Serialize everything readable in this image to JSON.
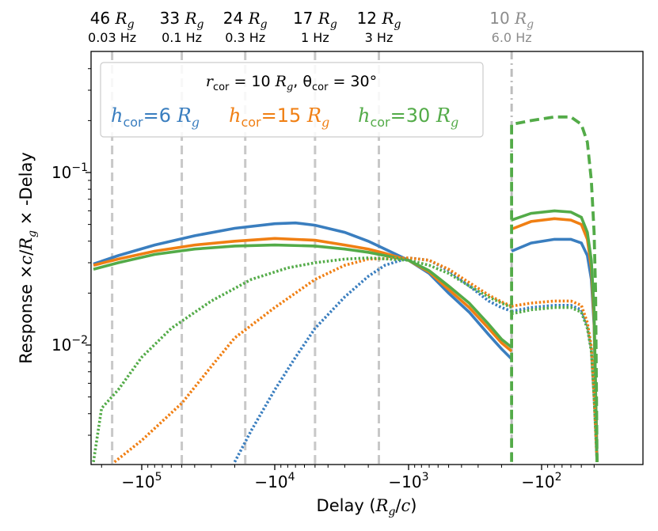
{
  "chart_data": {
    "type": "line",
    "xlabel_parts": [
      "Delay (",
      "R",
      "g",
      "/",
      "c",
      ")"
    ],
    "ylabel_parts": [
      "Response ×",
      "c",
      "/",
      "R",
      "g",
      " × -Delay"
    ],
    "x_axis": {
      "scale": "symlog-negative",
      "range_desc": "-2.3e5 to -35 (Rg/c)"
    },
    "y_axis": {
      "scale": "log",
      "range": [
        0.0021,
        0.48
      ]
    },
    "x_ticks": [
      {
        "value": -100000,
        "label_base": "−10",
        "label_exp": "5"
      },
      {
        "value": -10000,
        "label_base": "−10",
        "label_exp": "4"
      },
      {
        "value": -1000,
        "label_base": "−10",
        "label_exp": "3"
      },
      {
        "value": -100,
        "label_base": "−10",
        "label_exp": "2"
      }
    ],
    "y_ticks": [
      {
        "value": 0.1,
        "label_base": "10",
        "label_exp": "−1"
      },
      {
        "value": 0.01,
        "label_base": "10",
        "label_exp": "−2"
      }
    ],
    "frequency_markers": [
      {
        "delay": -166667,
        "radius": "46",
        "freq": "0.03 Hz",
        "color": "#000000"
      },
      {
        "delay": -50000,
        "radius": "33",
        "freq": "0.1 Hz",
        "color": "#000000"
      },
      {
        "delay": -16667,
        "radius": "24",
        "freq": "0.3 Hz",
        "color": "#000000"
      },
      {
        "delay": -5000,
        "radius": "17",
        "freq": "1 Hz",
        "color": "#000000"
      },
      {
        "delay": -1667,
        "radius": "12",
        "freq": "3 Hz",
        "color": "#000000"
      },
      {
        "delay": -168,
        "radius": "10",
        "freq": "6.0 Hz",
        "color": "#8c8c8c"
      }
    ],
    "legend": {
      "title_parts": [
        "r",
        "cor",
        " = 10 ",
        "R",
        "g",
        ", θ",
        "cor",
        " = 30°"
      ],
      "placement": "top-left",
      "entries": [
        {
          "name": "h",
          "sub": "cor",
          "value": "=6 ",
          "unit": "R",
          "unit_sub": "g",
          "color": "#3a7ebf"
        },
        {
          "name": "h",
          "sub": "cor",
          "value": "=15 ",
          "unit": "R",
          "unit_sub": "g",
          "color": "#f07f13"
        },
        {
          "name": "h",
          "sub": "cor",
          "value": "=30 ",
          "unit": "R",
          "unit_sub": "g",
          "color": "#53ab48"
        }
      ]
    },
    "series": [
      {
        "name": "h_cor=6 Rg (solid)",
        "color": "#3a7ebf",
        "style": "solid",
        "points": [
          [
            -230000,
            0.0295
          ],
          [
            -150000,
            0.033
          ],
          [
            -80000,
            0.038
          ],
          [
            -40000,
            0.043
          ],
          [
            -20000,
            0.0475
          ],
          [
            -10000,
            0.0505
          ],
          [
            -7000,
            0.051
          ],
          [
            -5000,
            0.0495
          ],
          [
            -3000,
            0.045
          ],
          [
            -2000,
            0.04
          ],
          [
            -1500,
            0.036
          ],
          [
            -1000,
            0.031
          ],
          [
            -700,
            0.026
          ],
          [
            -500,
            0.02
          ],
          [
            -350,
            0.0155
          ],
          [
            -250,
            0.0115
          ],
          [
            -200,
            0.0095
          ],
          [
            -168,
            0.0083
          ]
        ]
      },
      {
        "name": "h_cor=6 Rg (solid, post-edge)",
        "color": "#3a7ebf",
        "style": "solid",
        "points": [
          [
            -168,
            0.035
          ],
          [
            -120,
            0.039
          ],
          [
            -80,
            0.041
          ],
          [
            -60,
            0.041
          ],
          [
            -50,
            0.039
          ],
          [
            -45,
            0.033
          ],
          [
            -42,
            0.024
          ],
          [
            -40,
            0.013
          ],
          [
            -38,
            0.0021
          ]
        ]
      },
      {
        "name": "h_cor=15 Rg (solid)",
        "color": "#f07f13",
        "style": "solid",
        "points": [
          [
            -230000,
            0.029
          ],
          [
            -150000,
            0.0315
          ],
          [
            -80000,
            0.035
          ],
          [
            -40000,
            0.038
          ],
          [
            -20000,
            0.04
          ],
          [
            -10000,
            0.0415
          ],
          [
            -5000,
            0.0405
          ],
          [
            -3000,
            0.038
          ],
          [
            -2000,
            0.036
          ],
          [
            -1500,
            0.034
          ],
          [
            -1000,
            0.031
          ],
          [
            -700,
            0.0265
          ],
          [
            -500,
            0.021
          ],
          [
            -350,
            0.0165
          ],
          [
            -250,
            0.0125
          ],
          [
            -200,
            0.0103
          ],
          [
            -168,
            0.0092
          ]
        ]
      },
      {
        "name": "h_cor=15 Rg (solid, post-edge)",
        "color": "#f07f13",
        "style": "solid",
        "points": [
          [
            -168,
            0.047
          ],
          [
            -120,
            0.052
          ],
          [
            -80,
            0.054
          ],
          [
            -60,
            0.053
          ],
          [
            -50,
            0.05
          ],
          [
            -45,
            0.041
          ],
          [
            -42,
            0.028
          ],
          [
            -40,
            0.014
          ],
          [
            -38,
            0.0021
          ]
        ]
      },
      {
        "name": "h_cor=30 Rg (solid)",
        "color": "#53ab48",
        "style": "solid",
        "points": [
          [
            -230000,
            0.0275
          ],
          [
            -150000,
            0.03
          ],
          [
            -80000,
            0.0335
          ],
          [
            -40000,
            0.036
          ],
          [
            -20000,
            0.0375
          ],
          [
            -10000,
            0.038
          ],
          [
            -5000,
            0.0375
          ],
          [
            -3000,
            0.036
          ],
          [
            -2000,
            0.0345
          ],
          [
            -1500,
            0.033
          ],
          [
            -1000,
            0.031
          ],
          [
            -700,
            0.027
          ],
          [
            -500,
            0.022
          ],
          [
            -350,
            0.0175
          ],
          [
            -250,
            0.0132
          ],
          [
            -200,
            0.0108
          ],
          [
            -168,
            0.0097
          ]
        ]
      },
      {
        "name": "h_cor=30 Rg (solid, post-edge)",
        "color": "#53ab48",
        "style": "solid",
        "points": [
          [
            -168,
            0.053
          ],
          [
            -120,
            0.058
          ],
          [
            -80,
            0.06
          ],
          [
            -60,
            0.059
          ],
          [
            -50,
            0.055
          ],
          [
            -45,
            0.045
          ],
          [
            -42,
            0.031
          ],
          [
            -40,
            0.016
          ],
          [
            -38,
            0.0021
          ]
        ]
      },
      {
        "name": "h_cor=6 Rg (dotted)",
        "color": "#3a7ebf",
        "style": "dotted",
        "points": [
          [
            -20000,
            0.0021
          ],
          [
            -15000,
            0.0032
          ],
          [
            -10000,
            0.0055
          ],
          [
            -7000,
            0.0085
          ],
          [
            -5000,
            0.0125
          ],
          [
            -3000,
            0.019
          ],
          [
            -2000,
            0.025
          ],
          [
            -1500,
            0.029
          ],
          [
            -1000,
            0.032
          ],
          [
            -700,
            0.031
          ],
          [
            -500,
            0.027
          ],
          [
            -350,
            0.022
          ],
          [
            -250,
            0.018
          ],
          [
            -200,
            0.0165
          ],
          [
            -168,
            0.0157
          ]
        ]
      },
      {
        "name": "h_cor=6 Rg (dotted, post-edge)",
        "color": "#3a7ebf",
        "style": "dotted",
        "points": [
          [
            -168,
            0.0157
          ],
          [
            -120,
            0.0165
          ],
          [
            -80,
            0.017
          ],
          [
            -60,
            0.017
          ],
          [
            -50,
            0.016
          ],
          [
            -45,
            0.013
          ],
          [
            -42,
            0.0095
          ],
          [
            -40,
            0.005
          ],
          [
            -38,
            0.0021
          ]
        ]
      },
      {
        "name": "h_cor=15 Rg (dotted)",
        "color": "#f07f13",
        "style": "dotted",
        "points": [
          [
            -160000,
            0.0021
          ],
          [
            -100000,
            0.0028
          ],
          [
            -50000,
            0.0046
          ],
          [
            -30000,
            0.0075
          ],
          [
            -20000,
            0.011
          ],
          [
            -10000,
            0.0165
          ],
          [
            -5000,
            0.024
          ],
          [
            -3000,
            0.029
          ],
          [
            -2000,
            0.0315
          ],
          [
            -1000,
            0.032
          ],
          [
            -700,
            0.031
          ],
          [
            -500,
            0.0275
          ],
          [
            -350,
            0.023
          ],
          [
            -250,
            0.0195
          ],
          [
            -200,
            0.0178
          ],
          [
            -168,
            0.0168
          ]
        ]
      },
      {
        "name": "h_cor=15 Rg (dotted, post-edge)",
        "color": "#f07f13",
        "style": "dotted",
        "points": [
          [
            -168,
            0.0168
          ],
          [
            -120,
            0.0175
          ],
          [
            -80,
            0.018
          ],
          [
            -60,
            0.018
          ],
          [
            -50,
            0.017
          ],
          [
            -45,
            0.0135
          ],
          [
            -42,
            0.0098
          ],
          [
            -40,
            0.0052
          ],
          [
            -38,
            0.0021
          ]
        ]
      },
      {
        "name": "h_cor=30 Rg (dotted)",
        "color": "#53ab48",
        "style": "dotted",
        "points": [
          [
            -230000,
            0.0021
          ],
          [
            -200000,
            0.0043
          ],
          [
            -150000,
            0.0055
          ],
          [
            -100000,
            0.0085
          ],
          [
            -60000,
            0.0125
          ],
          [
            -30000,
            0.018
          ],
          [
            -15000,
            0.024
          ],
          [
            -8000,
            0.028
          ],
          [
            -5000,
            0.03
          ],
          [
            -3000,
            0.0315
          ],
          [
            -2000,
            0.032
          ],
          [
            -1000,
            0.031
          ],
          [
            -700,
            0.029
          ],
          [
            -500,
            0.026
          ],
          [
            -350,
            0.022
          ],
          [
            -250,
            0.019
          ],
          [
            -200,
            0.0175
          ],
          [
            -168,
            0.0165
          ]
        ]
      },
      {
        "name": "h_cor=30 Rg (dotted, post-edge)",
        "color": "#53ab48",
        "style": "dotted",
        "points": [
          [
            -168,
            0.0152
          ],
          [
            -120,
            0.016
          ],
          [
            -80,
            0.0165
          ],
          [
            -60,
            0.0165
          ],
          [
            -50,
            0.0155
          ],
          [
            -45,
            0.0125
          ],
          [
            -42,
            0.0092
          ],
          [
            -40,
            0.0049
          ],
          [
            -38,
            0.0021
          ]
        ]
      },
      {
        "name": "h_cor=30 Rg (dashed)",
        "color": "#53ab48",
        "style": "dashed",
        "points": [
          [
            -168,
            0.0021
          ],
          [
            -168,
            0.19
          ],
          [
            -120,
            0.2
          ],
          [
            -80,
            0.21
          ],
          [
            -60,
            0.21
          ],
          [
            -50,
            0.19
          ],
          [
            -45,
            0.15
          ],
          [
            -42,
            0.09
          ],
          [
            -40,
            0.045
          ],
          [
            -39,
            0.02
          ],
          [
            -38,
            0.0021
          ]
        ]
      }
    ]
  }
}
